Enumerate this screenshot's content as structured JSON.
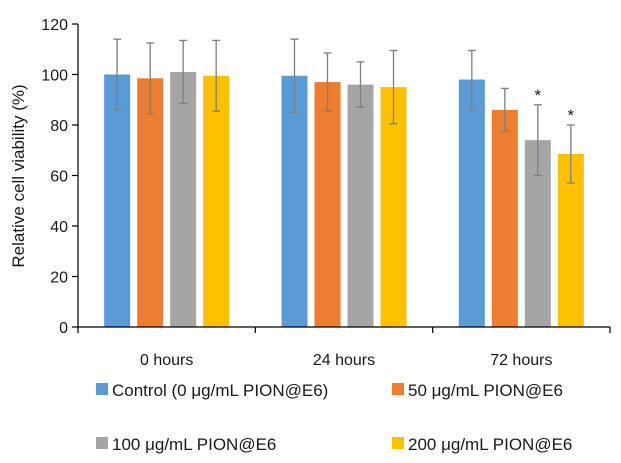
{
  "chart_data": {
    "type": "bar",
    "title": "",
    "xlabel": "",
    "ylabel": "Relative cell viability (%)",
    "ylim": [
      0,
      120
    ],
    "yticks": [
      0,
      20,
      40,
      60,
      80,
      100,
      120
    ],
    "grid": false,
    "legend_position": "bottom",
    "categories": [
      "0 hours",
      "24 hours",
      "72 hours"
    ],
    "series": [
      {
        "name": "Control (0 μg/mL PION@E6)",
        "color": "#5b9bd5",
        "values": [
          100,
          99.5,
          98
        ],
        "errors": [
          14,
          14.5,
          11.5
        ],
        "significance": [
          "",
          "",
          ""
        ]
      },
      {
        "name": "50 μg/mL PION@E6",
        "color": "#ed7d31",
        "values": [
          98.5,
          97,
          86
        ],
        "errors": [
          14,
          11.5,
          8.5
        ],
        "significance": [
          "",
          "",
          ""
        ]
      },
      {
        "name": "100 μg/mL PION@E6",
        "color": "#a5a5a5",
        "values": [
          101,
          96,
          74
        ],
        "errors": [
          12.5,
          9,
          14
        ],
        "significance": [
          "",
          "",
          "*"
        ]
      },
      {
        "name": "200 μg/mL PION@E6",
        "color": "#ffc000",
        "values": [
          99.5,
          95,
          68.5
        ],
        "errors": [
          14,
          14.5,
          11.5
        ],
        "significance": [
          "",
          "",
          "*"
        ]
      }
    ]
  }
}
